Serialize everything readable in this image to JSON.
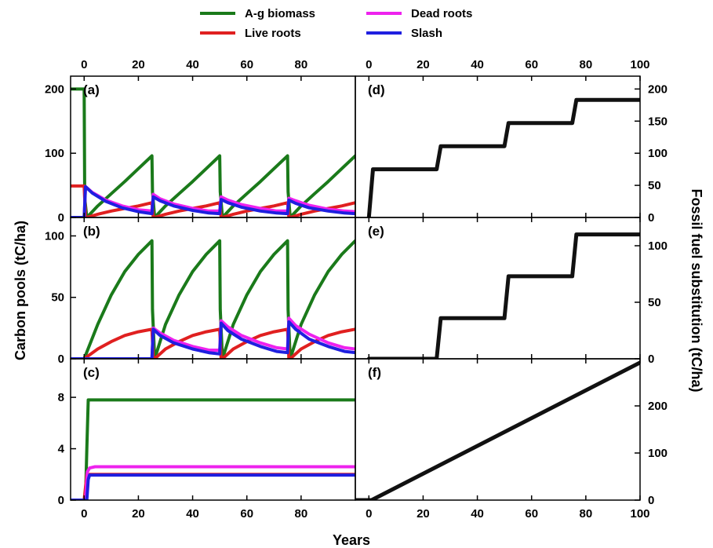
{
  "figure": {
    "xlabel": "Years",
    "ylabel_left": "Carbon pools (tC/ha)",
    "ylabel_right": "Fossil fuel substitution (tC/ha)"
  },
  "legend": [
    {
      "name": "A-g biomass",
      "color": "#1a7a1a"
    },
    {
      "name": "Live roots",
      "color": "#e02020"
    },
    {
      "name": "Dead roots",
      "color": "#ee22ee"
    },
    {
      "name": "Slash",
      "color": "#1f1fe0"
    }
  ],
  "colors": {
    "ag": "#1a7a1a",
    "live": "#e02020",
    "dead": "#ee22ee",
    "slash": "#1f1fe0",
    "fossil": "#111111"
  },
  "chart_data": [
    {
      "type": "line",
      "panel_label": "(a)",
      "xlim": [
        -5,
        100
      ],
      "ylim": [
        0,
        220
      ],
      "xticks": [
        0,
        20,
        40,
        60,
        80
      ],
      "yticks": [
        0,
        100,
        200
      ],
      "grid": false,
      "series": [
        {
          "name": "A-g biomass",
          "x": [
            -5,
            0,
            0.2,
            1,
            5,
            10,
            15,
            20,
            25,
            25.2,
            26,
            30,
            35,
            40,
            45,
            50,
            50.2,
            51,
            55,
            60,
            65,
            70,
            75,
            75.2,
            76,
            80,
            85,
            90,
            95,
            100
          ],
          "y": [
            200,
            200,
            30,
            0,
            18,
            37,
            56,
            76,
            96,
            40,
            0,
            18,
            37,
            56,
            76,
            96,
            40,
            0,
            18,
            37,
            56,
            76,
            96,
            40,
            0,
            18,
            37,
            56,
            76,
            96
          ]
        },
        {
          "name": "Live roots",
          "x": [
            -5,
            0,
            0.5,
            1,
            5,
            10,
            15,
            20,
            25,
            25.5,
            26,
            30,
            35,
            40,
            45,
            50,
            50.5,
            51,
            55,
            60,
            65,
            70,
            75,
            75.5,
            76,
            80,
            85,
            90,
            95,
            100
          ],
          "y": [
            49,
            49,
            0,
            0,
            5,
            10,
            14,
            18,
            23,
            0,
            0,
            5,
            10,
            14,
            18,
            23,
            0,
            0,
            5,
            10,
            14,
            18,
            23,
            0,
            0,
            5,
            10,
            14,
            18,
            23
          ]
        },
        {
          "name": "Dead roots",
          "x": [
            -5,
            0,
            0.5,
            3,
            8,
            14,
            20,
            25,
            25.5,
            28,
            33,
            40,
            46,
            50,
            50.5,
            53,
            58,
            65,
            71,
            75,
            75.5,
            78,
            83,
            90,
            96,
            100
          ],
          "y": [
            0,
            0,
            48,
            39,
            27,
            18,
            12,
            10,
            36,
            29,
            21,
            14,
            10,
            10,
            32,
            27,
            20,
            14,
            10,
            10,
            30,
            26,
            19,
            13,
            10,
            9
          ]
        },
        {
          "name": "Slash",
          "x": [
            -5,
            0,
            0.5,
            3,
            8,
            14,
            20,
            25,
            25.5,
            28,
            33,
            40,
            46,
            50,
            50.5,
            53,
            58,
            65,
            71,
            75,
            75.5,
            78,
            83,
            90,
            96,
            100
          ],
          "y": [
            0,
            0,
            48,
            38,
            25,
            15,
            9,
            6,
            32,
            26,
            18,
            11,
            7,
            6,
            28,
            23,
            16,
            10,
            7,
            6,
            27,
            22,
            15,
            10,
            7,
            6
          ]
        }
      ]
    },
    {
      "type": "line",
      "panel_label": "(b)",
      "xlim": [
        -5,
        100
      ],
      "ylim": [
        0,
        115
      ],
      "yticks": [
        0,
        50,
        100
      ],
      "grid": false,
      "series": [
        {
          "name": "A-g biomass",
          "x": [
            -5,
            0,
            5,
            10,
            15,
            20,
            25,
            25.2,
            26,
            30,
            35,
            40,
            45,
            50,
            50.2,
            51,
            55,
            60,
            65,
            70,
            75,
            75.2,
            76,
            80,
            85,
            90,
            95,
            100
          ],
          "y": [
            0,
            0,
            28,
            52,
            71,
            85,
            96,
            40,
            0,
            28,
            52,
            71,
            85,
            96,
            40,
            0,
            28,
            52,
            71,
            85,
            96,
            40,
            0,
            28,
            52,
            71,
            85,
            96
          ]
        },
        {
          "name": "Live roots",
          "x": [
            -5,
            0,
            5,
            10,
            15,
            20,
            25,
            25.5,
            26,
            30,
            35,
            40,
            45,
            50,
            50.5,
            51,
            55,
            60,
            65,
            70,
            75,
            75.5,
            76,
            80,
            85,
            90,
            95,
            100
          ],
          "y": [
            0,
            0,
            8,
            14,
            19,
            22,
            24,
            0,
            0,
            8,
            14,
            19,
            22,
            24,
            0,
            0,
            8,
            14,
            19,
            22,
            24,
            0,
            0,
            8,
            14,
            19,
            22,
            24
          ]
        },
        {
          "name": "Dead roots",
          "x": [
            -5,
            0,
            25,
            25.5,
            28,
            33,
            40,
            46,
            50,
            50.5,
            53,
            58,
            65,
            71,
            75,
            75.5,
            78,
            83,
            90,
            96,
            100
          ],
          "y": [
            0,
            0,
            0,
            25,
            21,
            15,
            10,
            7,
            7,
            31,
            26,
            19,
            13,
            9,
            8,
            33,
            27,
            20,
            13,
            9,
            8
          ]
        },
        {
          "name": "Slash",
          "x": [
            -5,
            0,
            25,
            25.5,
            28,
            33,
            40,
            46,
            50,
            50.5,
            53,
            58,
            65,
            71,
            75,
            75.5,
            78,
            83,
            90,
            96,
            100
          ],
          "y": [
            0,
            0,
            0,
            24,
            19,
            13,
            8,
            5,
            4,
            29,
            23,
            16,
            10,
            6,
            5,
            30,
            24,
            16,
            10,
            6,
            5
          ]
        }
      ]
    },
    {
      "type": "line",
      "panel_label": "(c)",
      "xlim": [
        -5,
        100
      ],
      "ylim": [
        0,
        11
      ],
      "yticks": [
        0,
        4,
        8
      ],
      "grid": false,
      "series": [
        {
          "name": "A-g biomass",
          "x": [
            -5,
            0.5,
            1,
            1.5,
            100
          ],
          "y": [
            0,
            0,
            4,
            7.8,
            7.8
          ]
        },
        {
          "name": "Live roots",
          "x": [
            -5,
            0,
            1,
            100
          ],
          "y": [
            0,
            0,
            2,
            2
          ]
        },
        {
          "name": "Dead roots",
          "x": [
            -5,
            0.5,
            1.2,
            2,
            4,
            100
          ],
          "y": [
            0,
            0,
            2.2,
            2.5,
            2.6,
            2.6
          ]
        },
        {
          "name": "Slash",
          "x": [
            -5,
            1,
            1.5,
            2,
            100
          ],
          "y": [
            0,
            0,
            1.6,
            1.95,
            1.95
          ]
        }
      ]
    },
    {
      "type": "line",
      "panel_label": "(d)",
      "xlim": [
        -5,
        100
      ],
      "ylim": [
        0,
        220
      ],
      "xticks": [
        0,
        20,
        40,
        60,
        80,
        100
      ],
      "yticks": [
        0,
        50,
        100,
        150,
        200
      ],
      "grid": false,
      "series": [
        {
          "name": "Fossil fuel substitution",
          "x": [
            0,
            1.5,
            25,
            26.5,
            50,
            51.5,
            75,
            76.5,
            100
          ],
          "y": [
            0,
            75,
            75,
            111,
            111,
            147,
            147,
            183,
            183
          ]
        }
      ]
    },
    {
      "type": "line",
      "panel_label": "(e)",
      "xlim": [
        -5,
        100
      ],
      "ylim": [
        0,
        125
      ],
      "yticks": [
        0,
        50,
        100
      ],
      "grid": false,
      "series": [
        {
          "name": "Fossil fuel substitution",
          "x": [
            0,
            25,
            26.5,
            50,
            51.5,
            75,
            76.5,
            100
          ],
          "y": [
            0,
            0,
            36,
            36,
            73,
            73,
            110,
            110
          ]
        }
      ]
    },
    {
      "type": "line",
      "panel_label": "(f)",
      "xlim": [
        -5,
        100
      ],
      "ylim": [
        0,
        300
      ],
      "xticks": [
        0,
        20,
        40,
        60,
        80,
        100
      ],
      "yticks": [
        0,
        100,
        200
      ],
      "grid": false,
      "series": [
        {
          "name": "Fossil fuel substitution",
          "x": [
            -5,
            1,
            100
          ],
          "y": [
            0,
            0,
            292
          ]
        }
      ]
    }
  ]
}
